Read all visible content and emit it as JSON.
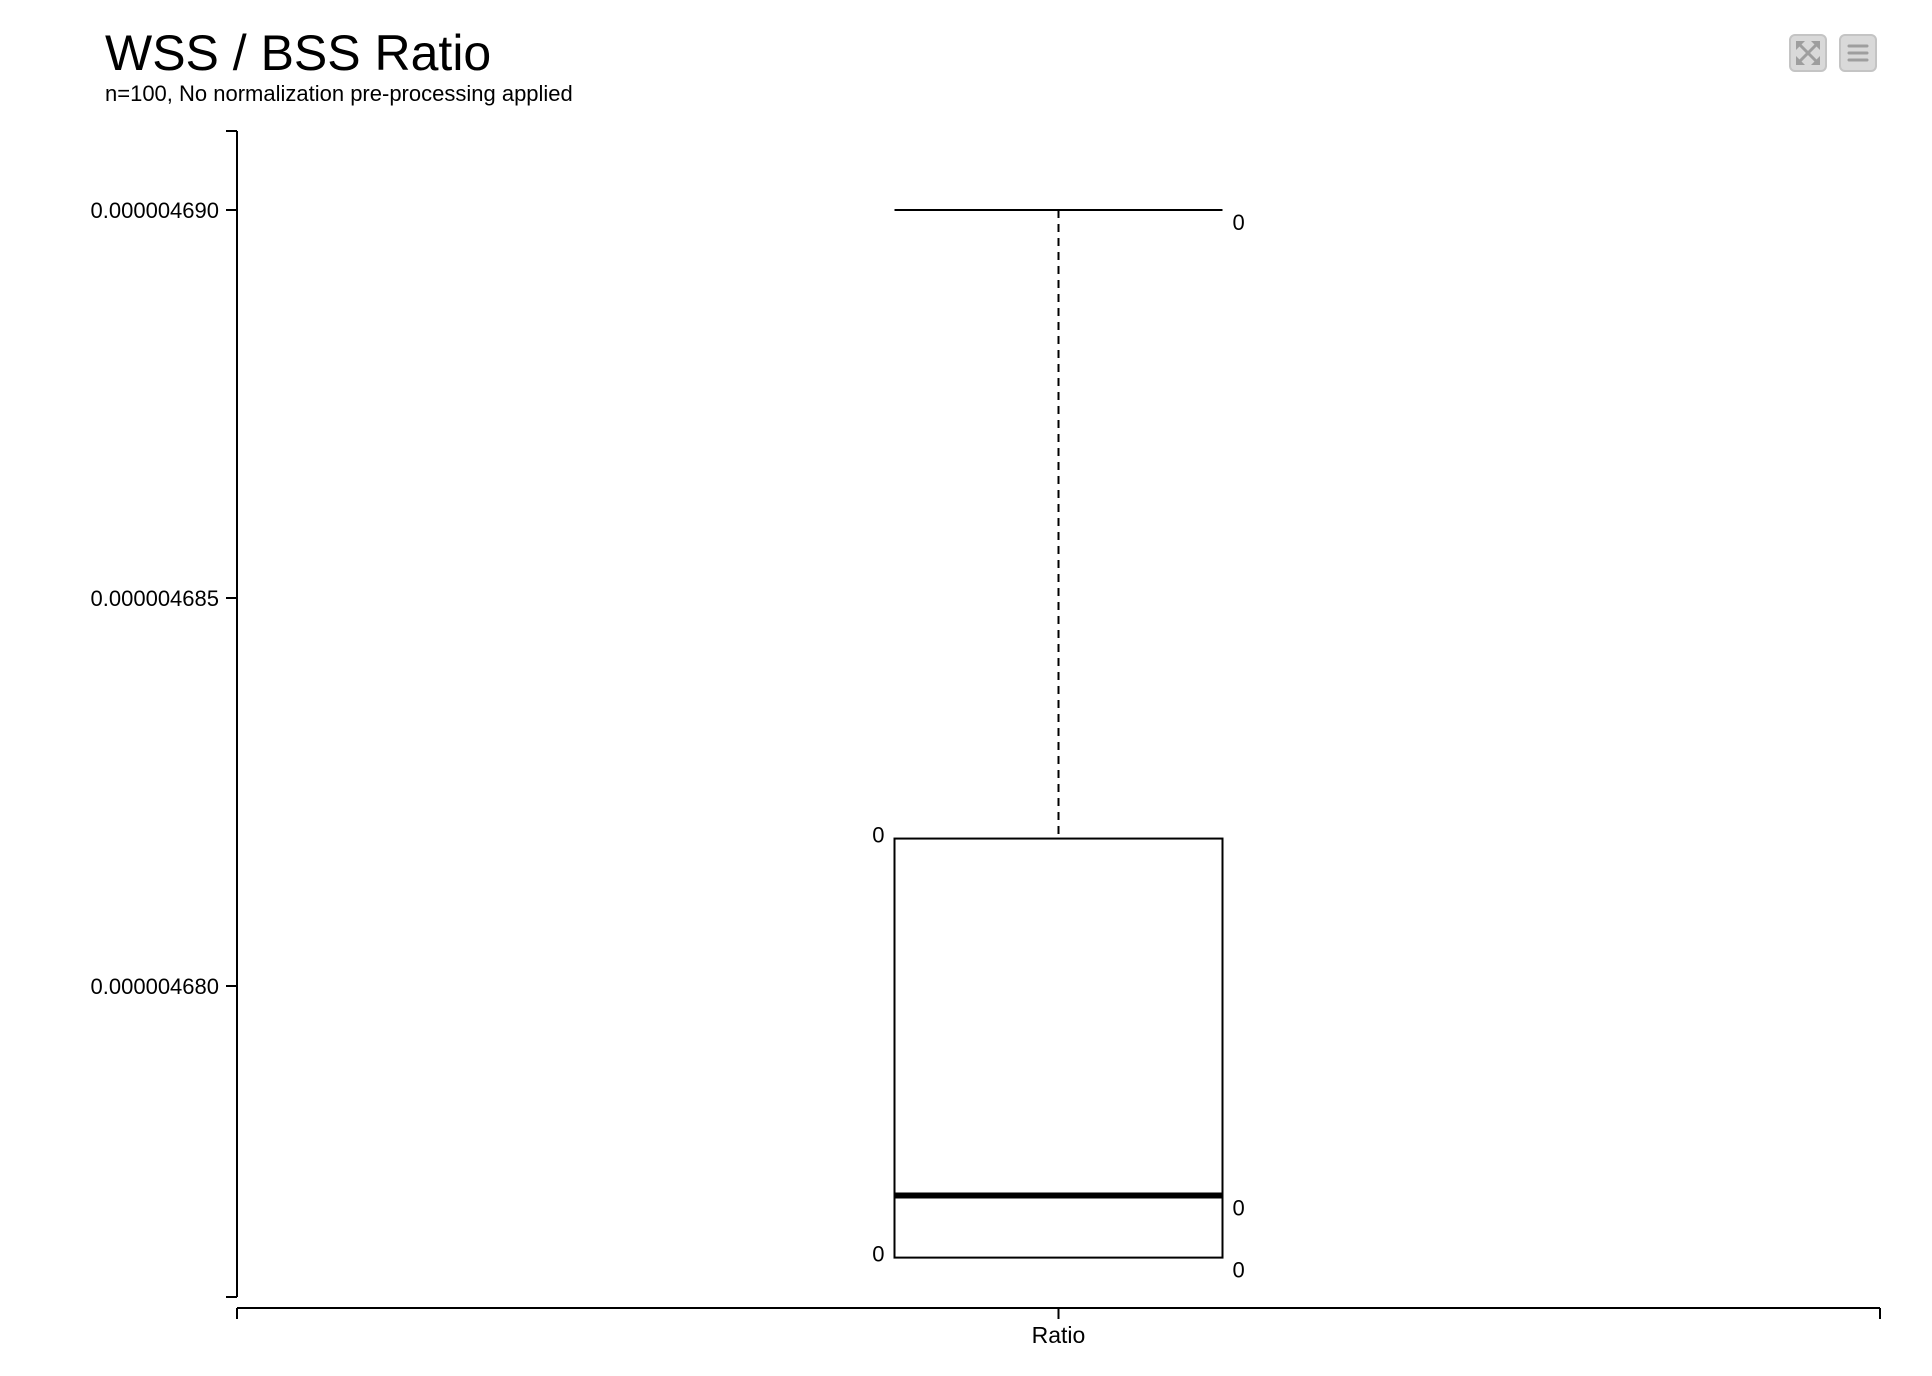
{
  "header": {
    "title": "WSS / BSS Ratio",
    "subtitle": "n=100, No normalization pre-processing applied"
  },
  "toolbar": {
    "buttons": [
      {
        "name": "expand-button",
        "icon": "expand-arrows-icon"
      },
      {
        "name": "menu-button",
        "icon": "hamburger-menu-icon"
      }
    ],
    "button_color": "#d9d9d9",
    "icon_color": "#9e9e9e"
  },
  "chart_data": {
    "type": "box",
    "categories": [
      "Ratio"
    ],
    "y_ticks": [
      {
        "value": 4.69e-06,
        "label": "0.000004690"
      },
      {
        "value": 4.685e-06,
        "label": "0.000004685"
      },
      {
        "value": 4.68e-06,
        "label": "0.000004680"
      }
    ],
    "ylim": [
      4.676e-06,
      4.691e-06
    ],
    "box": {
      "category": "Ratio",
      "whisker_high": 4.69e-06,
      "q3": 4.6819e-06,
      "median": 4.6773e-06,
      "q1": 4.6765e-06,
      "whisker_low": 4.6765e-06
    },
    "annotations": [
      {
        "text": "0",
        "value": 4.69e-06,
        "side": "right"
      },
      {
        "text": "0",
        "value": 4.6819e-06,
        "side": "left"
      },
      {
        "text": "0",
        "value": 4.6773e-06,
        "side": "right"
      },
      {
        "text": "0",
        "value": 4.6765e-06,
        "side": "right"
      },
      {
        "text": "0",
        "value": 4.6765e-06,
        "side": "left"
      }
    ],
    "xlabel": "",
    "ylabel": "",
    "grid": false,
    "legend": "none"
  }
}
